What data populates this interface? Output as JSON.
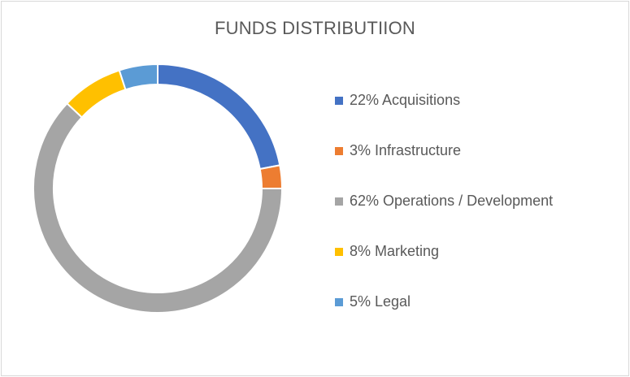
{
  "chart_data": {
    "type": "pie",
    "title": "FUNDS DISTRIBUTIION",
    "legend_position": "right",
    "series": [
      {
        "name": "Acquisitions",
        "value": 22,
        "label": "22%  Acquisitions",
        "color": "#4472C4"
      },
      {
        "name": "Infrastructure",
        "value": 3,
        "label": "3%  Infrastructure",
        "color": "#ED7D31"
      },
      {
        "name": "Operations / Development",
        "value": 62,
        "label": "62%  Operations / Development",
        "color": "#A5A5A5"
      },
      {
        "name": "Marketing",
        "value": 8,
        "label": "8% Marketing",
        "color": "#FFC000"
      },
      {
        "name": "Legal",
        "value": 5,
        "label": "5% Legal",
        "color": "#5B9BD5"
      }
    ]
  }
}
